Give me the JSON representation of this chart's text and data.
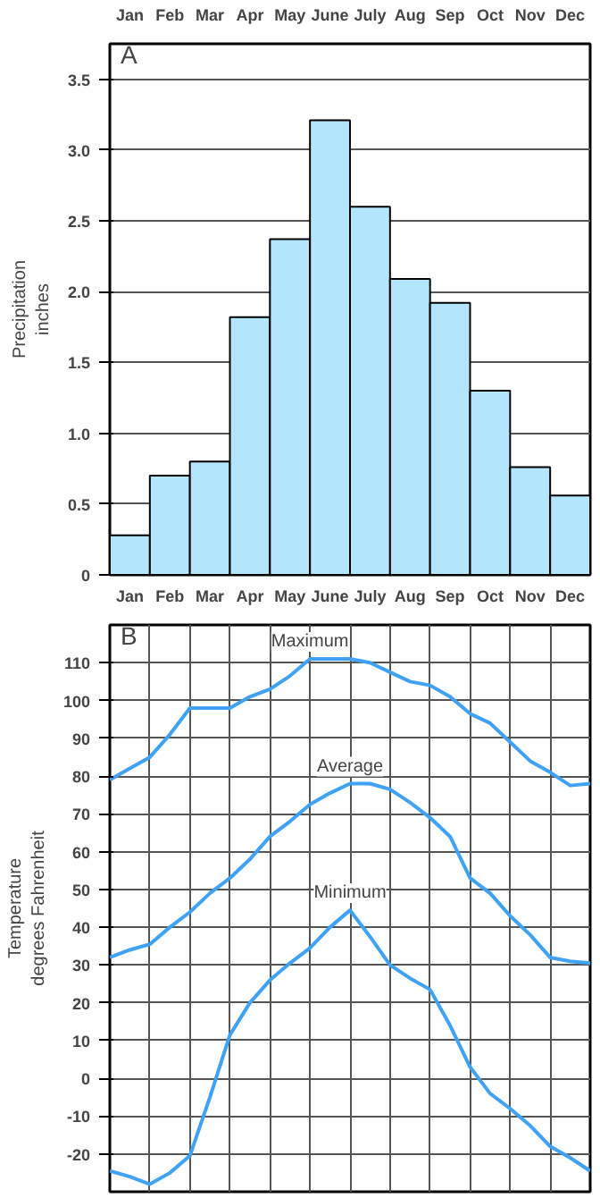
{
  "chart_data": [
    {
      "type": "bar",
      "ylabel": "Precipitation\ninches",
      "annotations": [
        "A"
      ],
      "categories": [
        "Jan",
        "Feb",
        "Mar",
        "Apr",
        "May",
        "June",
        "July",
        "Aug",
        "Sep",
        "Oct",
        "Nov",
        "Dec"
      ],
      "values": [
        0.28,
        0.7,
        0.8,
        1.82,
        2.37,
        3.21,
        2.6,
        2.09,
        1.92,
        1.3,
        0.76,
        0.56
      ],
      "color": "#b3e5fc",
      "ylim": [
        0,
        3.75
      ],
      "yticks": [
        0,
        0.5,
        {
          "value": 1,
          "label": "1.0"
        },
        1.5,
        {
          "value": 2,
          "label": "2.0"
        },
        2.5,
        {
          "value": 3,
          "label": "3.0"
        },
        3.5
      ],
      "grid": "y"
    },
    {
      "type": "line",
      "ylabel": "Temperature\ndegrees Fahrenheit",
      "annotations": [
        "B"
      ],
      "ylim": [
        -30,
        120
      ],
      "yticks": [
        -20,
        -10,
        0,
        10,
        20,
        30,
        40,
        50,
        60,
        70,
        80,
        90,
        100,
        110
      ],
      "categories": [
        null,
        "Jan",
        null,
        "Feb",
        null,
        "Mar",
        null,
        "Apr",
        null,
        "May",
        null,
        "June",
        null,
        "July",
        null,
        "Aug",
        null,
        "Sep",
        null,
        "Oct",
        null,
        "Nov",
        null,
        "Dec",
        null
      ],
      "grid": true,
      "line_style": "solid",
      "series": [
        {
          "name": "Maximum",
          "color": "#3fa2f5",
          "values": [
            79,
            82,
            85,
            91,
            98,
            98,
            98,
            101,
            103,
            106.5,
            111,
            111,
            111,
            110,
            107.5,
            105,
            104,
            101,
            96.5,
            94,
            89,
            84,
            81,
            77.5,
            78
          ]
        },
        {
          "name": "Average",
          "color": "#3fa2f5",
          "values": [
            32,
            34,
            35.5,
            40,
            44,
            49,
            53,
            58,
            64,
            68,
            72.5,
            75.5,
            78,
            78,
            76.5,
            73,
            69,
            64,
            53,
            49,
            43,
            38,
            32,
            31,
            30.5
          ]
        },
        {
          "name": "Minimum",
          "color": "#3fa2f5",
          "values": [
            -24.5,
            -26,
            -28,
            -25,
            -20.5,
            -5,
            11.5,
            20,
            26,
            30.5,
            34.5,
            40,
            44.5,
            37.5,
            30,
            26.5,
            23.5,
            14,
            3,
            -4,
            -8,
            -12.5,
            -18,
            -21,
            -24.5
          ]
        }
      ]
    }
  ]
}
